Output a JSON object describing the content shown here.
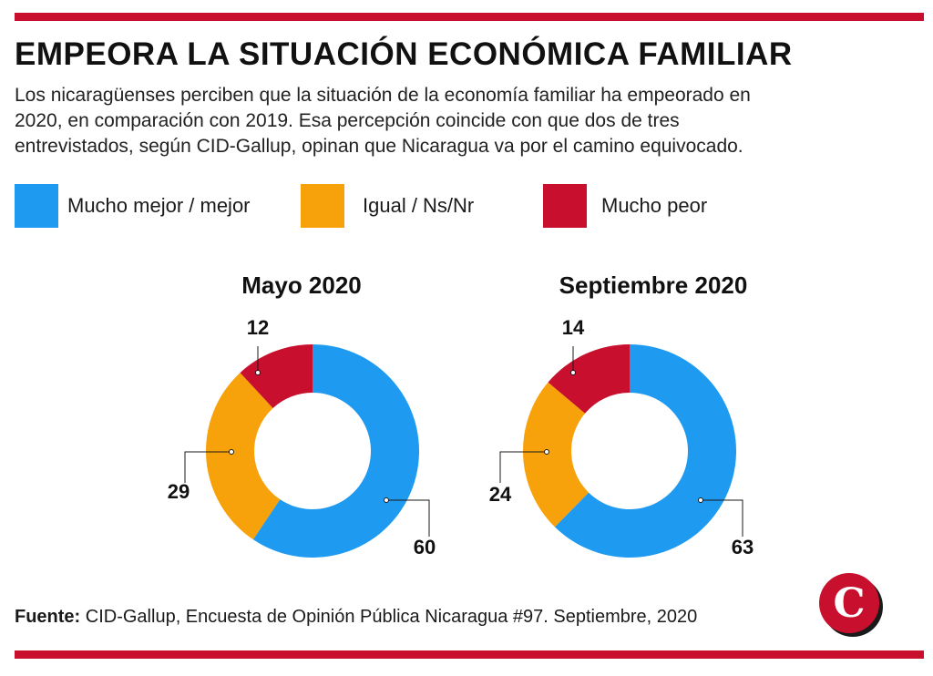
{
  "header": {
    "title": "EMPEORA LA SITUACIÓN ECONÓMICA FAMILIAR",
    "subtitle_lines": [
      "Los nicaragüenses perciben que la situación de la economía familiar ha empeorado en",
      "2020, en comparación con 2019. Esa percepción coincide con que dos de tres",
      "entrevistados, según CID-Gallup, opinan que Nicaragua va por el camino equivocado."
    ]
  },
  "legend": {
    "items": [
      {
        "label": "Mucho mejor / mejor",
        "color": "#1e9bf0"
      },
      {
        "label": "Igual / Ns/Nr",
        "color": "#f7a10b"
      },
      {
        "label": "Mucho peor",
        "color": "#c8102e"
      }
    ]
  },
  "chart_data": [
    {
      "type": "pie",
      "title": "Mayo 2020",
      "categories": [
        "Mucho mejor / mejor",
        "Igual / Ns/Nr",
        "Mucho peor"
      ],
      "values": [
        60,
        29,
        12
      ],
      "colors": [
        "#1e9bf0",
        "#f7a10b",
        "#c8102e"
      ],
      "donut": true
    },
    {
      "type": "pie",
      "title": "Septiembre 2020",
      "categories": [
        "Mucho mejor / mejor",
        "Igual / Ns/Nr",
        "Mucho peor"
      ],
      "values": [
        63,
        24,
        14
      ],
      "colors": [
        "#1e9bf0",
        "#f7a10b",
        "#c8102e"
      ],
      "donut": true
    }
  ],
  "footer": {
    "source_label": "Fuente:",
    "source_text": " CID-Gallup, Encuesta de Opinión Pública Nicaragua #97. Septiembre, 2020",
    "logo_letter": "C",
    "logo_color": "#c8102e"
  }
}
